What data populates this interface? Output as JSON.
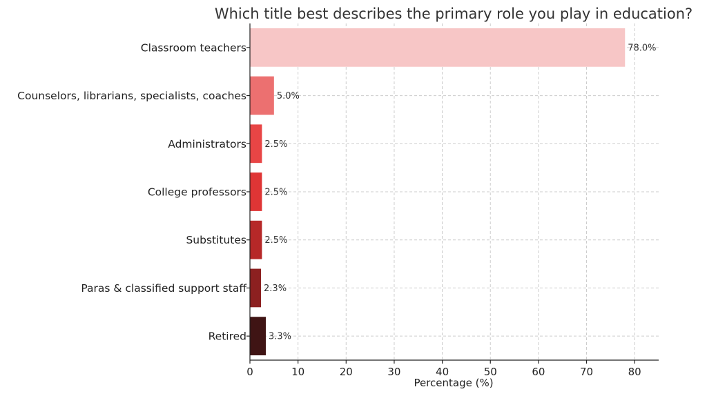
{
  "chart_data": {
    "type": "bar",
    "orientation": "horizontal",
    "title": "Which title best describes the primary role you play in education?",
    "xlabel": "Percentage (%)",
    "ylabel": "",
    "xlim": [
      0,
      85
    ],
    "xticks": [
      0,
      10,
      20,
      30,
      40,
      50,
      60,
      70,
      80
    ],
    "grid": true,
    "categories": [
      "Classroom teachers",
      "Counselors, librarians, specialists, coaches",
      "Administrators",
      "College professors",
      "Substitutes",
      "Paras & classified support staff",
      "Retired"
    ],
    "values": [
      78.0,
      5.0,
      2.5,
      2.5,
      2.5,
      2.3,
      3.3
    ],
    "value_labels": [
      "78.0%",
      "5.0%",
      "2.5%",
      "2.5%",
      "2.5%",
      "2.3%",
      "3.3%"
    ],
    "colors": [
      "#f7c6c6",
      "#ec7070",
      "#e84545",
      "#df3535",
      "#b62828",
      "#8c2020",
      "#3f1414"
    ]
  }
}
